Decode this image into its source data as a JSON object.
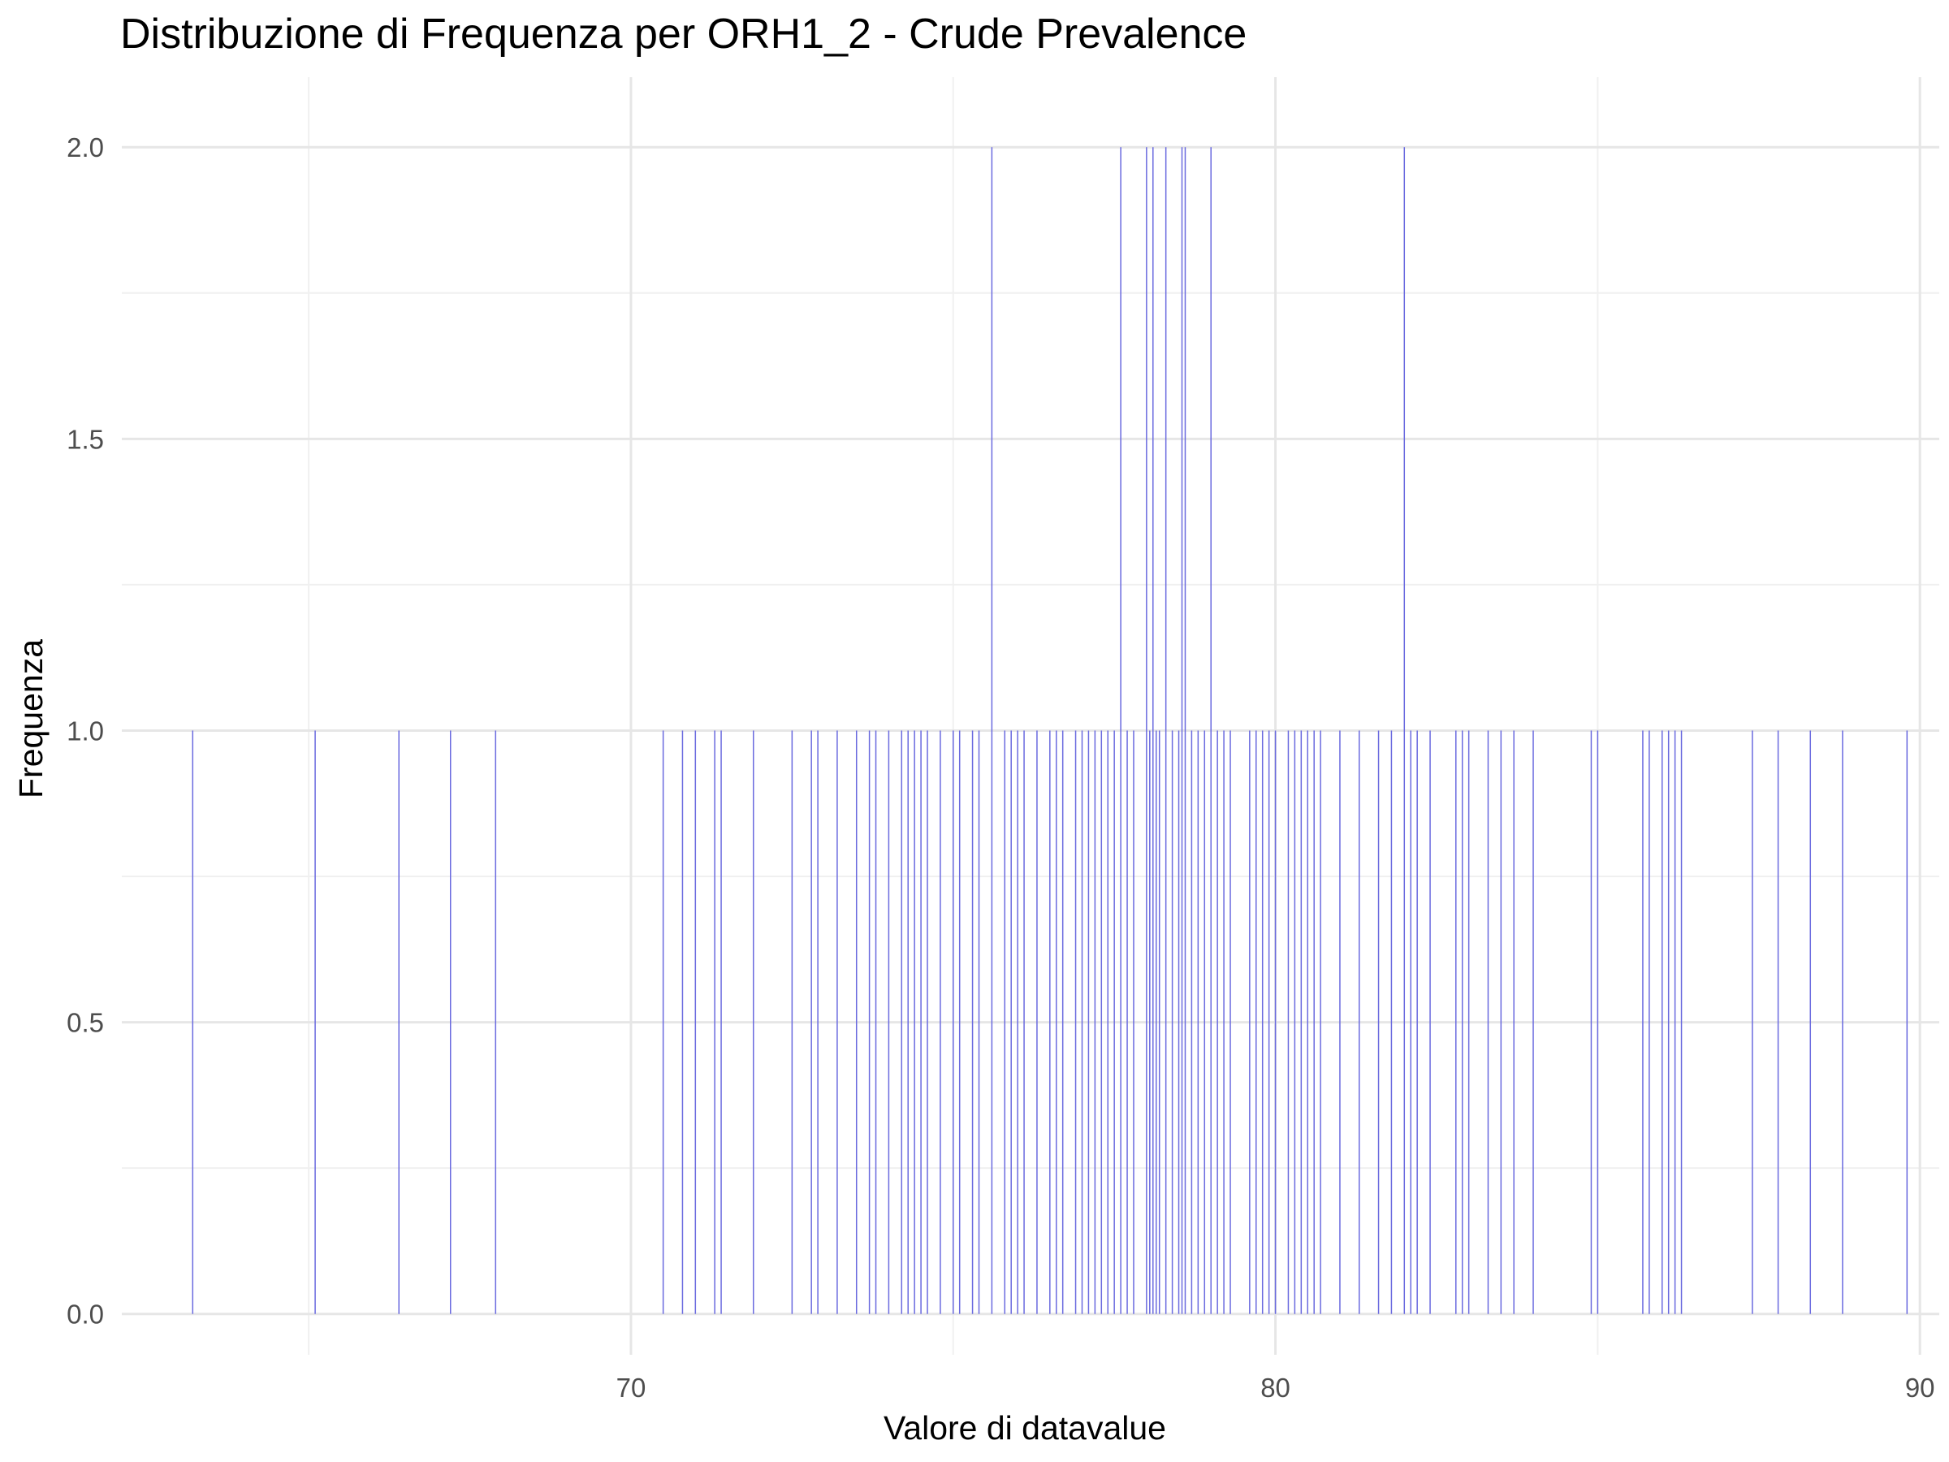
{
  "chart_data": {
    "type": "bar",
    "title": "Distribuzione di Frequenza per ORH1_2 - Crude Prevalence",
    "xlabel": "Valore di datavalue",
    "ylabel": "Frequenza",
    "xlim": [
      62.1,
      90.3
    ],
    "ylim": [
      -0.07,
      2.12
    ],
    "x_ticks": [
      70,
      80,
      90
    ],
    "x_tick_labels": [
      "70",
      "80",
      "90"
    ],
    "y_ticks": [
      0,
      0.5,
      1,
      1.5,
      2
    ],
    "y_tick_labels": [
      "0.0",
      "0.5",
      "1.0",
      "1.5",
      "2.0"
    ],
    "x_minor_ticks": [
      65,
      75,
      85
    ],
    "y_minor_ticks": [
      0.25,
      0.75,
      1.25,
      1.75
    ],
    "grid": true,
    "bar_color": "#6a6adf",
    "bars": [
      {
        "x": 63.2,
        "count": 1
      },
      {
        "x": 65.1,
        "count": 1
      },
      {
        "x": 66.4,
        "count": 1
      },
      {
        "x": 67.2,
        "count": 1
      },
      {
        "x": 67.9,
        "count": 1
      },
      {
        "x": 70.5,
        "count": 1
      },
      {
        "x": 70.8,
        "count": 1
      },
      {
        "x": 71.0,
        "count": 1
      },
      {
        "x": 71.3,
        "count": 1
      },
      {
        "x": 71.4,
        "count": 1
      },
      {
        "x": 71.9,
        "count": 1
      },
      {
        "x": 72.5,
        "count": 1
      },
      {
        "x": 72.8,
        "count": 1
      },
      {
        "x": 72.9,
        "count": 1
      },
      {
        "x": 73.2,
        "count": 1
      },
      {
        "x": 73.5,
        "count": 1
      },
      {
        "x": 73.7,
        "count": 1
      },
      {
        "x": 73.8,
        "count": 1
      },
      {
        "x": 74.0,
        "count": 1
      },
      {
        "x": 74.2,
        "count": 1
      },
      {
        "x": 74.3,
        "count": 1
      },
      {
        "x": 74.4,
        "count": 1
      },
      {
        "x": 74.5,
        "count": 1
      },
      {
        "x": 74.6,
        "count": 1
      },
      {
        "x": 74.8,
        "count": 1
      },
      {
        "x": 75.0,
        "count": 1
      },
      {
        "x": 75.1,
        "count": 1
      },
      {
        "x": 75.3,
        "count": 1
      },
      {
        "x": 75.4,
        "count": 1
      },
      {
        "x": 75.6,
        "count": 2
      },
      {
        "x": 75.8,
        "count": 1
      },
      {
        "x": 75.9,
        "count": 1
      },
      {
        "x": 76.0,
        "count": 1
      },
      {
        "x": 76.1,
        "count": 1
      },
      {
        "x": 76.3,
        "count": 1
      },
      {
        "x": 76.5,
        "count": 1
      },
      {
        "x": 76.6,
        "count": 1
      },
      {
        "x": 76.7,
        "count": 1
      },
      {
        "x": 76.9,
        "count": 1
      },
      {
        "x": 77.0,
        "count": 1
      },
      {
        "x": 77.1,
        "count": 1
      },
      {
        "x": 77.2,
        "count": 1
      },
      {
        "x": 77.3,
        "count": 1
      },
      {
        "x": 77.4,
        "count": 1
      },
      {
        "x": 77.5,
        "count": 1
      },
      {
        "x": 77.6,
        "count": 2
      },
      {
        "x": 77.7,
        "count": 1
      },
      {
        "x": 77.8,
        "count": 1
      },
      {
        "x": 78.0,
        "count": 2
      },
      {
        "x": 78.05,
        "count": 1
      },
      {
        "x": 78.1,
        "count": 2
      },
      {
        "x": 78.15,
        "count": 1
      },
      {
        "x": 78.2,
        "count": 1
      },
      {
        "x": 78.3,
        "count": 2
      },
      {
        "x": 78.4,
        "count": 1
      },
      {
        "x": 78.5,
        "count": 1
      },
      {
        "x": 78.55,
        "count": 2
      },
      {
        "x": 78.6,
        "count": 2
      },
      {
        "x": 78.7,
        "count": 1
      },
      {
        "x": 78.8,
        "count": 1
      },
      {
        "x": 78.9,
        "count": 1
      },
      {
        "x": 79.0,
        "count": 2
      },
      {
        "x": 79.1,
        "count": 1
      },
      {
        "x": 79.2,
        "count": 1
      },
      {
        "x": 79.3,
        "count": 1
      },
      {
        "x": 79.6,
        "count": 1
      },
      {
        "x": 79.7,
        "count": 1
      },
      {
        "x": 79.8,
        "count": 1
      },
      {
        "x": 79.9,
        "count": 1
      },
      {
        "x": 80.0,
        "count": 1
      },
      {
        "x": 80.2,
        "count": 1
      },
      {
        "x": 80.3,
        "count": 1
      },
      {
        "x": 80.4,
        "count": 1
      },
      {
        "x": 80.5,
        "count": 1
      },
      {
        "x": 80.6,
        "count": 1
      },
      {
        "x": 80.7,
        "count": 1
      },
      {
        "x": 81.0,
        "count": 1
      },
      {
        "x": 81.3,
        "count": 1
      },
      {
        "x": 81.6,
        "count": 1
      },
      {
        "x": 81.8,
        "count": 1
      },
      {
        "x": 82.0,
        "count": 2
      },
      {
        "x": 82.1,
        "count": 1
      },
      {
        "x": 82.2,
        "count": 1
      },
      {
        "x": 82.4,
        "count": 1
      },
      {
        "x": 82.8,
        "count": 1
      },
      {
        "x": 82.9,
        "count": 1
      },
      {
        "x": 83.0,
        "count": 1
      },
      {
        "x": 83.3,
        "count": 1
      },
      {
        "x": 83.5,
        "count": 1
      },
      {
        "x": 83.7,
        "count": 1
      },
      {
        "x": 84.0,
        "count": 1
      },
      {
        "x": 84.9,
        "count": 1
      },
      {
        "x": 85.0,
        "count": 1
      },
      {
        "x": 85.7,
        "count": 1
      },
      {
        "x": 85.8,
        "count": 1
      },
      {
        "x": 86.0,
        "count": 1
      },
      {
        "x": 86.1,
        "count": 1
      },
      {
        "x": 86.2,
        "count": 1
      },
      {
        "x": 86.3,
        "count": 1
      },
      {
        "x": 87.4,
        "count": 1
      },
      {
        "x": 87.8,
        "count": 1
      },
      {
        "x": 88.3,
        "count": 1
      },
      {
        "x": 88.8,
        "count": 1
      },
      {
        "x": 89.8,
        "count": 1
      }
    ]
  }
}
